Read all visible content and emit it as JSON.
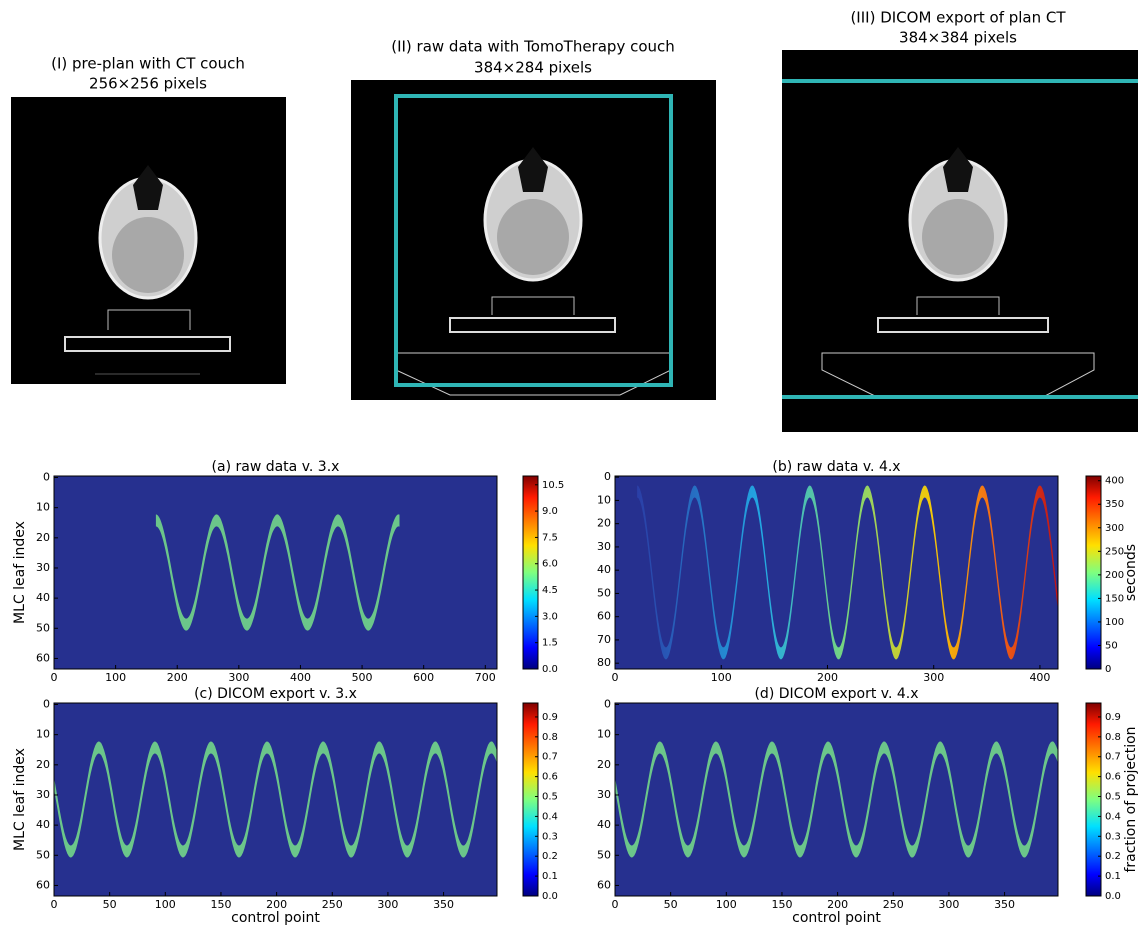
{
  "images": [
    {
      "title": [
        "(I) pre-plan with CT couch",
        "256×256 pixels"
      ]
    },
    {
      "title": [
        "(II) raw data with TomoTherapy couch",
        "384×284 pixels"
      ]
    },
    {
      "title": [
        "(III) DICOM export of plan CT",
        "384×384 pixels"
      ]
    }
  ],
  "chart_data": [
    {
      "type": "heatmap",
      "title": "(a) raw data v. 3.x",
      "ylabel": "MLC leaf index",
      "xlim": [
        0,
        719
      ],
      "ylim": [
        63.5,
        -0.5
      ],
      "xticks": [
        0,
        100,
        200,
        300,
        400,
        500,
        600,
        700
      ],
      "yticks": [
        0,
        10,
        20,
        30,
        40,
        50,
        60
      ],
      "clim": [
        0,
        11
      ],
      "cticks": [
        {
          "value": 0,
          "label": "0.0"
        },
        {
          "value": 1.5,
          "label": "1.5"
        },
        {
          "value": 3,
          "label": "3.0"
        },
        {
          "value": 4.5,
          "label": "4.5"
        },
        {
          "value": 6,
          "label": "6.0"
        },
        {
          "value": 7.5,
          "label": "7.5"
        },
        {
          "value": 9,
          "label": "9.0"
        },
        {
          "value": 10.5,
          "label": "10.5"
        }
      ]
    },
    {
      "type": "heatmap",
      "title": "(b) raw data v. 4.x",
      "colorbar_label": "seconds",
      "xlim": [
        0,
        417
      ],
      "ylim": [
        82.5,
        -0.5
      ],
      "xticks": [
        0,
        100,
        200,
        300,
        400
      ],
      "yticks": [
        0,
        10,
        20,
        30,
        40,
        50,
        60,
        70,
        80
      ],
      "clim": [
        0,
        410
      ],
      "cticks": [
        0,
        50,
        100,
        150,
        200,
        250,
        300,
        350,
        400
      ]
    },
    {
      "type": "heatmap",
      "title": "(c) DICOM export v. 3.x",
      "ylabel": "MLC leaf index",
      "xlabel": "control point",
      "xlim": [
        0,
        398
      ],
      "ylim": [
        63.5,
        -0.5
      ],
      "xticks": [
        0,
        50,
        100,
        150,
        200,
        250,
        300,
        350
      ],
      "yticks": [
        0,
        10,
        20,
        30,
        40,
        50,
        60
      ],
      "clim": [
        0,
        0.97
      ],
      "cticks": [
        {
          "value": 0,
          "label": "0.0"
        },
        0.1,
        0.2,
        0.3,
        0.4,
        0.5,
        0.6,
        0.7,
        0.8,
        0.9
      ]
    },
    {
      "type": "heatmap",
      "title": "(d) DICOM export v. 4.x",
      "xlabel": "control point",
      "colorbar_label": "fraction of projection",
      "xlim": [
        0,
        398
      ],
      "ylim": [
        63.5,
        -0.5
      ],
      "xticks": [
        0,
        50,
        100,
        150,
        200,
        250,
        300,
        350
      ],
      "yticks": [
        0,
        10,
        20,
        30,
        40,
        50,
        60
      ],
      "clim": [
        0,
        0.97
      ],
      "cticks": [
        {
          "value": 0,
          "label": "0.0"
        },
        0.1,
        0.2,
        0.3,
        0.4,
        0.5,
        0.6,
        0.7,
        0.8,
        0.9
      ]
    }
  ]
}
